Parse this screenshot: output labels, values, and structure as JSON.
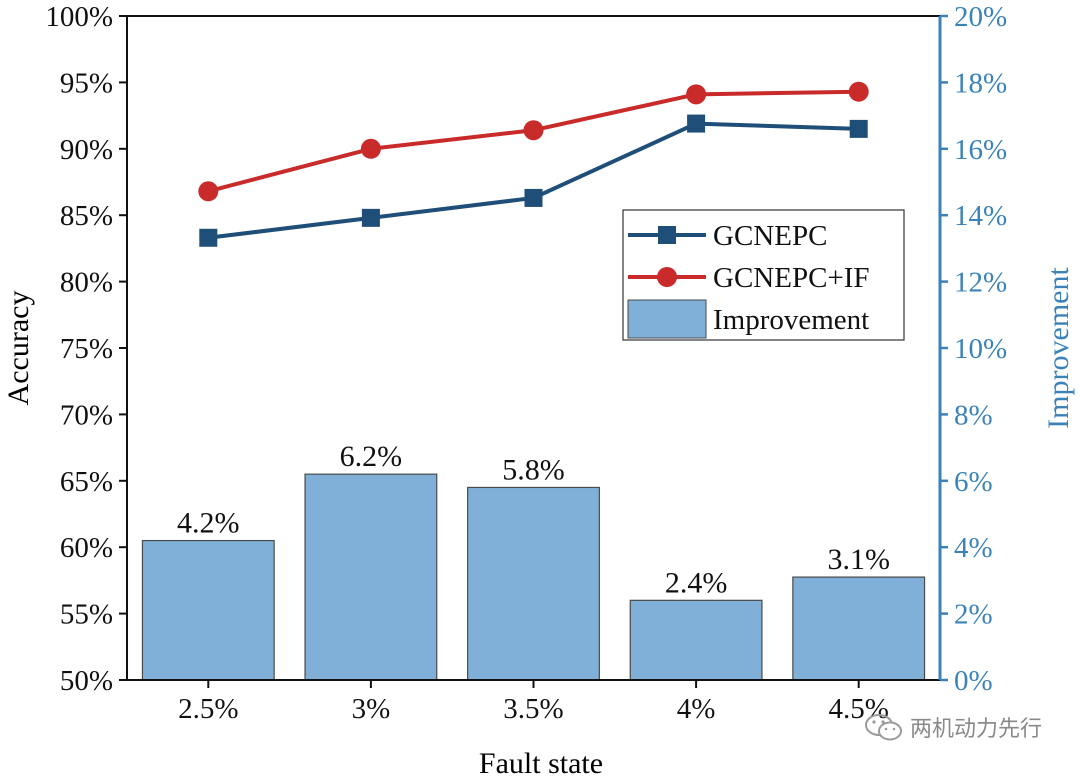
{
  "chart_data": {
    "type": "bar+line",
    "xlabel": "Fault state",
    "ylabel_left": "Accuracy",
    "ylabel_right": "Improvement",
    "categories": [
      "2.5%",
      "3%",
      "3.5%",
      "4%",
      "4.5%"
    ],
    "y_left_ticks": [
      "50%",
      "55%",
      "60%",
      "65%",
      "70%",
      "75%",
      "80%",
      "85%",
      "90%",
      "95%",
      "100%"
    ],
    "y_right_ticks": [
      "0%",
      "2%",
      "4%",
      "6%",
      "8%",
      "10%",
      "12%",
      "14%",
      "16%",
      "18%",
      "20%"
    ],
    "ylim_left": [
      50,
      100
    ],
    "ylim_right": [
      0,
      20
    ],
    "series": [
      {
        "name": "GCNEPC",
        "axis": "left",
        "type": "line",
        "marker": "square",
        "color": "#1f4e79",
        "values": [
          83.3,
          84.8,
          86.3,
          91.9,
          91.5
        ]
      },
      {
        "name": "GCNEPC+IF",
        "axis": "left",
        "type": "line",
        "marker": "circle",
        "color": "#c92a2a",
        "values": [
          86.8,
          90.0,
          91.4,
          94.1,
          94.3
        ]
      },
      {
        "name": "Improvement",
        "axis": "right",
        "type": "bar",
        "color": "#80b0d8",
        "values": [
          4.2,
          6.2,
          5.8,
          2.4,
          3.1
        ],
        "labels": [
          "4.2%",
          "6.2%",
          "5.8%",
          "2.4%",
          "3.1%"
        ]
      }
    ],
    "legend": {
      "position": "center-right",
      "items": [
        "GCNEPC",
        "GCNEPC+IF",
        "Improvement"
      ]
    }
  },
  "colors": {
    "right_axis": "#3b82b8",
    "bar_edge": "#4a4a4a"
  },
  "watermark": {
    "text": "两机动力先行",
    "icon": "wechat-icon"
  }
}
